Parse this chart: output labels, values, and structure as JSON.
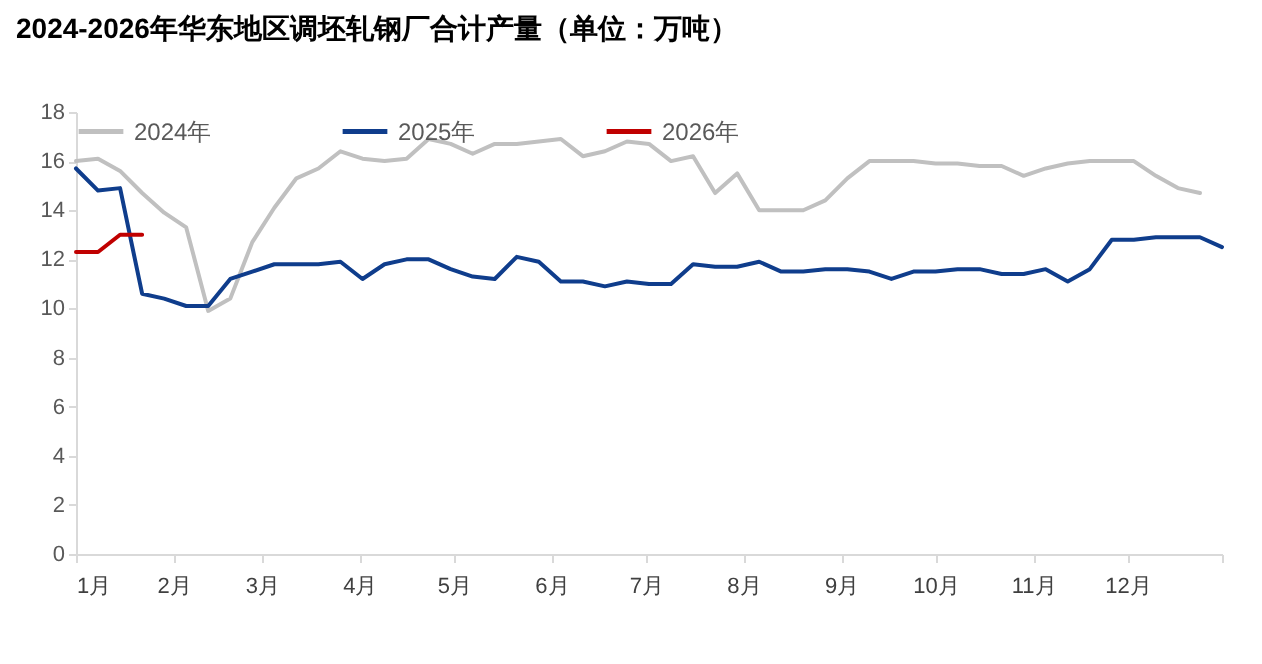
{
  "chart_data": {
    "type": "line",
    "title": "2024-2026年华东地区调坯轧钢厂合计产量（单位：万吨）",
    "xlim": [
      "--01-01",
      "--12-31"
    ],
    "xticks": [
      {
        "value": "--01-01",
        "label": "1月"
      },
      {
        "value": "--02-01",
        "label": "2月"
      },
      {
        "value": "--03-01",
        "label": "3月"
      },
      {
        "value": "--04-01",
        "label": "4月"
      },
      {
        "value": "--05-01",
        "label": "5月"
      },
      {
        "value": "--06-01",
        "label": "6月"
      },
      {
        "value": "--07-01",
        "label": "7月"
      },
      {
        "value": "--08-01",
        "label": "8月"
      },
      {
        "value": "--09-01",
        "label": "9月"
      },
      {
        "value": "--10-01",
        "label": "10月"
      },
      {
        "value": "--11-01",
        "label": "11月"
      },
      {
        "value": "--12-01",
        "label": "12月"
      },
      {
        "value": "--12-31",
        "label": null
      }
    ],
    "ylim": [
      0,
      18
    ],
    "yticks": [
      0,
      2,
      4,
      6,
      8,
      10,
      12,
      14,
      16,
      18
    ],
    "grid": false,
    "legend": "top",
    "line_style": "solid",
    "marker": "none",
    "x": [
      "--01-01",
      "--01-08",
      "--01-15",
      "--01-22",
      "--01-29",
      "--02-05",
      "--02-12",
      "--02-19",
      "--02-26",
      "--03-05",
      "--03-12",
      "--03-19",
      "--03-26",
      "--04-02",
      "--04-09",
      "--04-16",
      "--04-23",
      "--04-30",
      "--05-07",
      "--05-14",
      "--05-21",
      "--05-28",
      "--06-04",
      "--06-11",
      "--06-18",
      "--06-25",
      "--07-02",
      "--07-09",
      "--07-16",
      "--07-23",
      "--07-30",
      "--08-06",
      "--08-13",
      "--08-20",
      "--08-27",
      "--09-03",
      "--09-10",
      "--09-17",
      "--09-24",
      "--10-01",
      "--10-08",
      "--10-15",
      "--10-22",
      "--10-29",
      "--11-05",
      "--11-12",
      "--11-19",
      "--11-26",
      "--12-03",
      "--12-10",
      "--12-17",
      "--12-24",
      "--12-31"
    ],
    "series": [
      {
        "name": "2024年",
        "color": "#c0c0c0",
        "values": [
          16.0,
          16.1,
          15.6,
          14.7,
          13.9,
          13.3,
          9.9,
          10.4,
          12.7,
          14.1,
          15.3,
          15.7,
          16.4,
          16.1,
          16.0,
          16.1,
          16.9,
          16.7,
          16.3,
          16.7,
          16.7,
          16.8,
          16.9,
          16.2,
          16.4,
          16.8,
          16.7,
          16.0,
          16.2,
          14.7,
          15.5,
          14.0,
          14.0,
          14.0,
          14.4,
          15.3,
          16.0,
          16.0,
          16.0,
          15.9,
          15.9,
          15.8,
          15.8,
          15.4,
          15.7,
          15.9,
          16.0,
          16.0,
          16.0,
          15.4,
          14.9,
          14.7,
          null
        ]
      },
      {
        "name": "2025年",
        "color": "#0f3d8c",
        "values": [
          15.7,
          14.8,
          14.9,
          10.6,
          10.4,
          10.1,
          10.1,
          11.2,
          11.5,
          11.8,
          11.8,
          11.8,
          11.9,
          11.2,
          11.8,
          12.0,
          12.0,
          11.6,
          11.3,
          11.2,
          12.1,
          11.9,
          11.1,
          11.1,
          10.9,
          11.1,
          11.0,
          11.0,
          11.8,
          11.7,
          11.7,
          11.9,
          11.5,
          11.5,
          11.6,
          11.6,
          11.5,
          11.2,
          11.5,
          11.5,
          11.6,
          11.6,
          11.4,
          11.4,
          11.6,
          11.1,
          11.6,
          12.8,
          12.8,
          12.9,
          12.9,
          12.9,
          12.5
        ]
      },
      {
        "name": "2026年",
        "color": "#c00000",
        "values": [
          12.3,
          12.3,
          13.0,
          13.0,
          null,
          null,
          null,
          null,
          null,
          null,
          null,
          null,
          null,
          null,
          null,
          null,
          null,
          null,
          null,
          null,
          null,
          null,
          null,
          null,
          null,
          null,
          null,
          null,
          null,
          null,
          null,
          null,
          null,
          null,
          null,
          null,
          null,
          null,
          null,
          null,
          null,
          null,
          null,
          null,
          null,
          null,
          null,
          null,
          null,
          null,
          null,
          null,
          null
        ]
      }
    ]
  }
}
